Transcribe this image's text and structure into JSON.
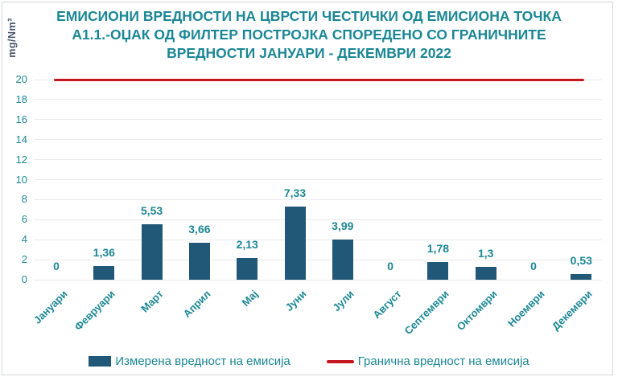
{
  "chart_data": {
    "type": "bar",
    "title": "ЕМИСИОНИ ВРЕДНОСТИ НА ЦВРСТИ ЧЕСТИЧКИ ОД ЕМИСИОНА ТОЧКА А1.1.-ОЏАК ОД ФИЛТЕР ПОСТРОЈКА СПОРЕДЕНО СО ГРАНИЧНИТЕ ВРЕДНОСТИ ЈАНУАРИ - ДЕКЕМВРИ 2022",
    "title_lines": [
      "ЕМИСИОНИ ВРЕДНОСТИ НА ЦВРСТИ ЧЕСТИЧКИ ОД ЕМИСИОНА ТОЧКА",
      "А1.1.-ОЏАК ОД ФИЛТЕР ПОСТРОЈКА СПОРЕДЕНО СО ГРАНИЧНИТЕ",
      "ВРЕДНОСТИ ЈАНУАРИ - ДЕКЕМВРИ 2022"
    ],
    "ylabel": "mg/Nm³",
    "xlabel": "",
    "ylim": [
      0,
      20
    ],
    "yticks": [
      0,
      2,
      4,
      6,
      8,
      10,
      12,
      14,
      16,
      18,
      20
    ],
    "grid": true,
    "legend_position": "bottom",
    "categories": [
      "Јануари",
      "Февруари",
      "Март",
      "Април",
      "Мај",
      "Јуни",
      "Јули",
      "Август",
      "Септември",
      "Октомври",
      "Ноември",
      "Декември"
    ],
    "values": [
      0,
      1.36,
      5.53,
      3.66,
      2.13,
      7.33,
      3.99,
      0,
      1.78,
      1.3,
      0,
      0.53
    ],
    "value_labels": [
      "0",
      "1,36",
      "5,53",
      "3,66",
      "2,13",
      "7,33",
      "3,99",
      "0",
      "1,78",
      "1,3",
      "0",
      "0,53"
    ],
    "limit_value": 20,
    "legend": [
      {
        "label": "Измерена вредност на емисија",
        "swatch": "bar",
        "color": "#215878"
      },
      {
        "label": "Гранична вредност на емисија",
        "swatch": "line",
        "color": "#C3161E"
      }
    ],
    "colors": {
      "teal_text": "#1B8795",
      "bar": "#215878",
      "limit_line": "#C3161E",
      "grid": "#E9EAEC",
      "axis_title_text": "#44546A",
      "frame_border": "#D4D6D8",
      "background": "#FFFFFF"
    }
  }
}
